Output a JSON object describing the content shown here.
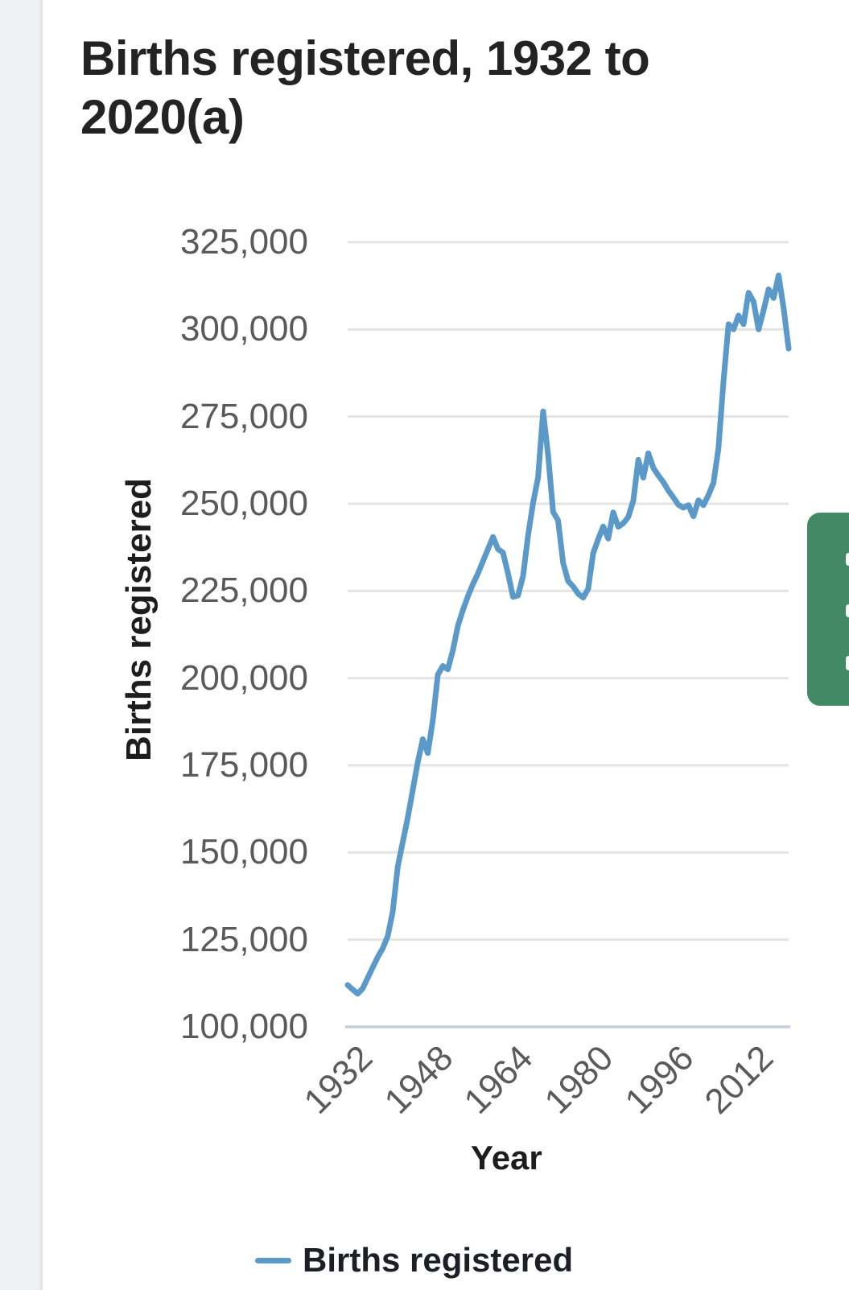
{
  "page": {
    "title": "Births registered, 1932 to 2020(a)"
  },
  "side_tab": {
    "color": "#418a64"
  },
  "chart_data": {
    "type": "line",
    "title": "Births registered, 1932 to 2020(a)",
    "xlabel": "Year",
    "ylabel": "Births registered",
    "legend": [
      "Births registered"
    ],
    "legend_position": "bottom",
    "grid": true,
    "line_color": "#5b99c9",
    "gridline_color": "#e4e4e4",
    "baseline_color": "#c5cfe1",
    "tick_label_color": "#5a5a5a",
    "ylim": [
      100000,
      325000
    ],
    "y_ticks": [
      100000,
      125000,
      150000,
      175000,
      200000,
      225000,
      250000,
      275000,
      300000,
      325000
    ],
    "x_ticks": [
      1932,
      1948,
      1964,
      1980,
      1996,
      2012
    ],
    "x": [
      1932,
      1933,
      1934,
      1935,
      1936,
      1937,
      1938,
      1939,
      1940,
      1941,
      1942,
      1943,
      1944,
      1945,
      1946,
      1947,
      1948,
      1949,
      1950,
      1951,
      1952,
      1953,
      1954,
      1955,
      1956,
      1957,
      1958,
      1959,
      1960,
      1961,
      1962,
      1963,
      1964,
      1965,
      1966,
      1967,
      1968,
      1969,
      1970,
      1971,
      1972,
      1973,
      1974,
      1975,
      1976,
      1977,
      1978,
      1979,
      1980,
      1981,
      1982,
      1983,
      1984,
      1985,
      1986,
      1987,
      1988,
      1989,
      1990,
      1991,
      1992,
      1993,
      1994,
      1995,
      1996,
      1997,
      1998,
      1999,
      2000,
      2001,
      2002,
      2003,
      2004,
      2005,
      2006,
      2007,
      2008,
      2009,
      2010,
      2011,
      2012,
      2013,
      2014,
      2015,
      2016,
      2017,
      2018,
      2019,
      2020
    ],
    "series": [
      {
        "name": "Births registered",
        "values": [
          112000,
          110700,
          109500,
          111000,
          114000,
          117000,
          120000,
          122500,
          126000,
          133000,
          146000,
          153000,
          160000,
          168000,
          176000,
          182500,
          178500,
          188000,
          201000,
          203500,
          202500,
          208000,
          215000,
          219500,
          223500,
          227000,
          230000,
          233500,
          237000,
          240500,
          237000,
          236000,
          230000,
          223300,
          223700,
          229300,
          240900,
          250200,
          257500,
          276500,
          264000,
          247700,
          245200,
          233000,
          227800,
          226300,
          224200,
          223100,
          225600,
          235800,
          239900,
          243500,
          240000,
          247500,
          243400,
          244400,
          246200,
          250900,
          262600,
          257500,
          264500,
          260300,
          258100,
          256200,
          253800,
          251800,
          249700,
          248900,
          249600,
          246400,
          251000,
          249600,
          252500,
          256000,
          266000,
          285000,
          301500,
          300000,
          304000,
          301500,
          310500,
          308000,
          300000,
          305500,
          311500,
          309000,
          315500,
          306000,
          294500
        ]
      }
    ]
  }
}
